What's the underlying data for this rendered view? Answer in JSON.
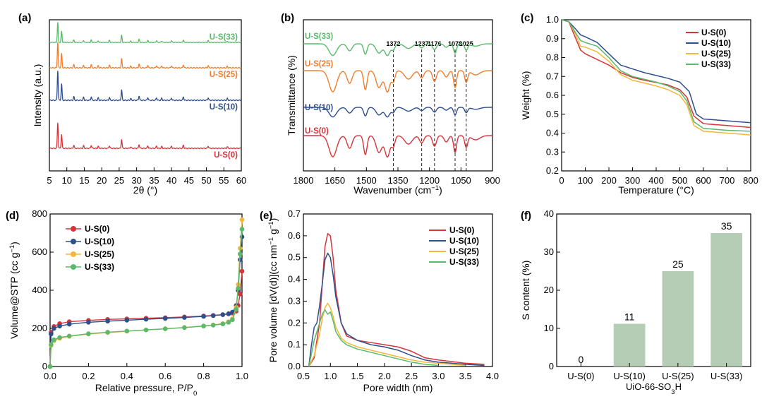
{
  "colors": {
    "s0": "#d6343b",
    "s10": "#2e4e8c",
    "s25": "#f4b73b",
    "s33": "#5ab96a",
    "xrd_s25": "#f07d2e",
    "bar": "#b4cdb4"
  },
  "chart_data": [
    {
      "id": "a",
      "panel_label": "(a)",
      "type": "line",
      "xlabel": "2θ (°)",
      "ylabel": "Intensity (a.u.)",
      "xlim": [
        5,
        60
      ],
      "xticks": [
        "5",
        "10",
        "15",
        "20",
        "25",
        "30",
        "35",
        "40",
        "45",
        "50",
        "55",
        "60"
      ],
      "series": [
        {
          "name": "U-S(0)",
          "offset": 0.0,
          "color_key": "s0"
        },
        {
          "name": "U-S(10)",
          "offset": 1.0,
          "color_key": "s10"
        },
        {
          "name": "U-S(25)",
          "offset": 2.0,
          "color_key": "xrd_s25"
        },
        {
          "name": "U-S(33)",
          "offset": 3.0,
          "color_key": "s33"
        }
      ],
      "peaks": [
        [
          7.4,
          1.0
        ],
        [
          8.5,
          0.55
        ],
        [
          12.0,
          0.12
        ],
        [
          14.8,
          0.1
        ],
        [
          17.0,
          0.12
        ],
        [
          19.0,
          0.08
        ],
        [
          22.2,
          0.1
        ],
        [
          25.7,
          0.35
        ],
        [
          28.3,
          0.06
        ],
        [
          30.7,
          0.15
        ],
        [
          33.2,
          0.1
        ],
        [
          35.7,
          0.09
        ],
        [
          37.2,
          0.07
        ],
        [
          40.0,
          0.08
        ],
        [
          43.4,
          0.12
        ],
        [
          50.5,
          0.09
        ],
        [
          56.0,
          0.06
        ]
      ]
    },
    {
      "id": "b",
      "panel_label": "(b)",
      "type": "line",
      "xlabel": "Wavenumber (cm",
      "xlabel_sup": "−1",
      "xlabel_end": ")",
      "ylabel": "Transmittance (%)",
      "xlim": [
        1800,
        900
      ],
      "xticks": [
        "1800",
        "1650",
        "1500",
        "1350",
        "1200",
        "1050",
        "900"
      ],
      "marked_peaks": [
        "1372",
        "1237",
        "1176",
        "1078",
        "1025"
      ],
      "series": [
        {
          "name": "U-S(0)",
          "offset": 0.0,
          "depth": 1.0,
          "color_key": "s0"
        },
        {
          "name": "U-S(10)",
          "offset": 1.35,
          "depth": 0.45,
          "color_key": "s10"
        },
        {
          "name": "U-S(25)",
          "offset": 2.55,
          "depth": 1.0,
          "color_key": "xrd_s25"
        },
        {
          "name": "U-S(33)",
          "offset": 3.65,
          "depth": 0.55,
          "color_key": "s33"
        }
      ]
    },
    {
      "id": "c",
      "panel_label": "(c)",
      "type": "line",
      "xlabel": "Temperature (°C)",
      "ylabel": "Weight (%)",
      "xlim": [
        0,
        800
      ],
      "ylim": [
        0.2,
        1.0
      ],
      "xticks": [
        "0",
        "100",
        "200",
        "300",
        "400",
        "500",
        "600",
        "700",
        "800"
      ],
      "yticks": [
        "0.2",
        "0.3",
        "0.4",
        "0.5",
        "0.6",
        "0.7",
        "0.8",
        "0.9",
        "1.0"
      ],
      "legend": "top-right",
      "series": [
        {
          "name": "U-S(0)",
          "color_key": "s0",
          "x": [
            0,
            30,
            60,
            80,
            100,
            150,
            200,
            250,
            300,
            350,
            400,
            450,
            500,
            530,
            560,
            600,
            650,
            700,
            800
          ],
          "y": [
            1.0,
            0.99,
            0.9,
            0.84,
            0.82,
            0.79,
            0.76,
            0.72,
            0.695,
            0.68,
            0.668,
            0.655,
            0.63,
            0.59,
            0.49,
            0.45,
            0.445,
            0.44,
            0.43
          ]
        },
        {
          "name": "U-S(10)",
          "color_key": "s10",
          "x": [
            0,
            30,
            60,
            80,
            100,
            150,
            200,
            250,
            300,
            350,
            400,
            450,
            500,
            540,
            570,
            600,
            650,
            700,
            800
          ],
          "y": [
            1.0,
            0.99,
            0.95,
            0.92,
            0.91,
            0.88,
            0.82,
            0.76,
            0.74,
            0.72,
            0.705,
            0.69,
            0.67,
            0.62,
            0.5,
            0.475,
            0.47,
            0.465,
            0.455
          ]
        },
        {
          "name": "U-S(25)",
          "color_key": "s25",
          "x": [
            0,
            30,
            60,
            80,
            100,
            150,
            200,
            250,
            300,
            350,
            400,
            450,
            500,
            530,
            560,
            600,
            650,
            700,
            800
          ],
          "y": [
            1.0,
            0.99,
            0.92,
            0.86,
            0.855,
            0.83,
            0.78,
            0.71,
            0.68,
            0.665,
            0.65,
            0.63,
            0.6,
            0.55,
            0.44,
            0.41,
            0.405,
            0.4,
            0.39
          ]
        },
        {
          "name": "U-S(33)",
          "color_key": "s33",
          "x": [
            0,
            30,
            60,
            80,
            100,
            150,
            200,
            250,
            300,
            350,
            400,
            450,
            500,
            530,
            560,
            600,
            650,
            700,
            800
          ],
          "y": [
            1.0,
            0.99,
            0.93,
            0.89,
            0.88,
            0.86,
            0.8,
            0.73,
            0.7,
            0.685,
            0.67,
            0.65,
            0.62,
            0.57,
            0.46,
            0.425,
            0.42,
            0.415,
            0.41
          ]
        }
      ]
    },
    {
      "id": "d",
      "panel_label": "(d)",
      "type": "line",
      "xlabel": "Relative pressure, P/P",
      "xlabel_sub": "0",
      "ylabel": "Volume@STP (cc g",
      "ylabel_sup": "−1",
      "ylabel_end": ")",
      "xlim": [
        0,
        1
      ],
      "ylim": [
        0,
        800
      ],
      "xticks": [
        "0.0",
        "0.2",
        "0.4",
        "0.6",
        "0.8",
        "1.0"
      ],
      "yticks": [
        "0",
        "200",
        "400",
        "600",
        "800"
      ],
      "legend": "top-left",
      "series": [
        {
          "name": "U-S(0)",
          "color_key": "s0",
          "x": [
            0.0,
            0.005,
            0.02,
            0.05,
            0.1,
            0.2,
            0.3,
            0.4,
            0.5,
            0.6,
            0.7,
            0.8,
            0.85,
            0.9,
            0.93,
            0.95,
            0.97,
            0.98,
            0.99,
            1.0
          ],
          "y": [
            0,
            180,
            210,
            225,
            235,
            242,
            247,
            250,
            253,
            256,
            260,
            265,
            268,
            272,
            276,
            280,
            290,
            320,
            380,
            500
          ]
        },
        {
          "name": "U-S(10)",
          "color_key": "s10",
          "x": [
            0.0,
            0.005,
            0.02,
            0.05,
            0.1,
            0.2,
            0.3,
            0.4,
            0.5,
            0.6,
            0.7,
            0.8,
            0.85,
            0.9,
            0.93,
            0.95,
            0.97,
            0.98,
            0.99,
            1.0
          ],
          "y": [
            0,
            170,
            200,
            212,
            222,
            232,
            238,
            243,
            248,
            252,
            257,
            263,
            267,
            272,
            277,
            285,
            320,
            400,
            560,
            680
          ]
        },
        {
          "name": "U-S(25)",
          "color_key": "s25",
          "x": [
            0.0,
            0.005,
            0.02,
            0.05,
            0.1,
            0.2,
            0.3,
            0.4,
            0.5,
            0.6,
            0.7,
            0.8,
            0.85,
            0.9,
            0.93,
            0.95,
            0.97,
            0.98,
            0.99,
            1.0
          ],
          "y": [
            0,
            110,
            135,
            148,
            158,
            170,
            178,
            185,
            192,
            198,
            205,
            213,
            218,
            225,
            235,
            250,
            310,
            430,
            620,
            770
          ]
        },
        {
          "name": "U-S(33)",
          "color_key": "s33",
          "x": [
            0.0,
            0.005,
            0.02,
            0.05,
            0.1,
            0.2,
            0.3,
            0.4,
            0.5,
            0.6,
            0.7,
            0.8,
            0.85,
            0.9,
            0.93,
            0.95,
            0.97,
            0.98,
            0.99,
            1.0
          ],
          "y": [
            0,
            115,
            140,
            152,
            160,
            172,
            180,
            186,
            192,
            198,
            204,
            212,
            217,
            223,
            232,
            245,
            300,
            410,
            590,
            720
          ]
        }
      ]
    },
    {
      "id": "e",
      "panel_label": "(e)",
      "type": "line",
      "xlabel": "Pore width (nm)",
      "ylabel": "Pore volume [dV(d)](cc nm",
      "ylabel_sup1": "−1",
      "ylabel_mid": " g",
      "ylabel_sup2": "−1",
      "ylabel_end": ")",
      "xlim": [
        0.5,
        4.0
      ],
      "ylim": [
        0,
        0.7
      ],
      "xticks": [
        "0.5",
        "1.0",
        "1.5",
        "2.0",
        "2.5",
        "3.0",
        "3.5",
        "4.0"
      ],
      "yticks": [
        "0.0",
        "0.1",
        "0.2",
        "0.3",
        "0.4",
        "0.5",
        "0.6",
        "0.7"
      ],
      "legend": "top-right",
      "series": [
        {
          "name": "U-S(0)",
          "color_key": "s0",
          "x": [
            0.6,
            0.7,
            0.8,
            0.85,
            0.9,
            0.95,
            1.0,
            1.05,
            1.1,
            1.2,
            1.3,
            1.5,
            1.75,
            2.0,
            2.25,
            2.5,
            2.75,
            3.0,
            3.5,
            3.85
          ],
          "y": [
            0.0,
            0.04,
            0.2,
            0.38,
            0.55,
            0.61,
            0.6,
            0.5,
            0.35,
            0.2,
            0.14,
            0.12,
            0.11,
            0.1,
            0.09,
            0.07,
            0.04,
            0.03,
            0.015,
            0.01
          ]
        },
        {
          "name": "U-S(10)",
          "color_key": "s10",
          "x": [
            0.6,
            0.65,
            0.7,
            0.75,
            0.8,
            0.85,
            0.9,
            0.95,
            1.0,
            1.05,
            1.1,
            1.2,
            1.3,
            1.5,
            1.75,
            2.0,
            2.25,
            2.5,
            2.75,
            3.0,
            3.5,
            3.85
          ],
          "y": [
            0.0,
            0.1,
            0.18,
            0.2,
            0.28,
            0.38,
            0.49,
            0.52,
            0.5,
            0.42,
            0.32,
            0.2,
            0.15,
            0.12,
            0.1,
            0.09,
            0.075,
            0.05,
            0.03,
            0.02,
            0.01,
            0.005
          ]
        },
        {
          "name": "U-S(25)",
          "color_key": "s25",
          "x": [
            0.6,
            0.7,
            0.8,
            0.85,
            0.9,
            0.95,
            1.0,
            1.05,
            1.1,
            1.2,
            1.3,
            1.5,
            1.75,
            2.0,
            2.25,
            2.5,
            2.75,
            3.0,
            3.5
          ],
          "y": [
            0.0,
            0.05,
            0.15,
            0.22,
            0.27,
            0.29,
            0.27,
            0.23,
            0.18,
            0.13,
            0.11,
            0.09,
            0.075,
            0.06,
            0.045,
            0.03,
            0.02,
            0.015,
            0.005
          ]
        },
        {
          "name": "U-S(33)",
          "color_key": "s33",
          "x": [
            0.6,
            0.65,
            0.7,
            0.75,
            0.8,
            0.85,
            0.9,
            0.95,
            1.0,
            1.05,
            1.1,
            1.2,
            1.3,
            1.5,
            1.75,
            2.0,
            2.25,
            2.5,
            2.75,
            3.0
          ],
          "y": [
            0.0,
            0.06,
            0.12,
            0.16,
            0.2,
            0.24,
            0.26,
            0.24,
            0.25,
            0.21,
            0.16,
            0.12,
            0.1,
            0.08,
            0.065,
            0.05,
            0.035,
            0.02,
            0.01,
            0.005
          ]
        }
      ]
    },
    {
      "id": "f",
      "panel_label": "(f)",
      "type": "bar",
      "ylabel": "S content (%)",
      "xlabel": "UiO-66-SO",
      "xlabel_sub": "3",
      "xlabel_end": "H",
      "ylim": [
        0,
        40
      ],
      "yticks": [
        "0",
        "10",
        "20",
        "30",
        "40"
      ],
      "categories": [
        "U-S(0)",
        "U-S(10)",
        "U-S(25)",
        "U-S(33)"
      ],
      "values": [
        0,
        11.2,
        25,
        35
      ],
      "value_labels": [
        "0",
        "11",
        "25",
        "35"
      ]
    }
  ]
}
